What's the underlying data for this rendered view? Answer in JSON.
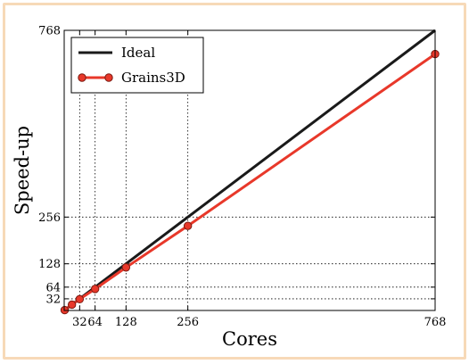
{
  "chart_data": {
    "type": "line",
    "xlabel": "Cores",
    "ylabel": "Speed-up",
    "xlim": [
      0,
      768
    ],
    "ylim": [
      0,
      768
    ],
    "xticks": [
      32,
      64,
      128,
      256,
      768
    ],
    "yticks": [
      32,
      64,
      128,
      256,
      768
    ],
    "grid": "dotted",
    "legend_position": "top-left",
    "series": [
      {
        "name": "Ideal",
        "color": "#1a1a1a",
        "marker": "none",
        "x": [
          0,
          768
        ],
        "y": [
          0,
          768
        ]
      },
      {
        "name": "Grains3D",
        "color": "#e8382a",
        "marker": "circle",
        "x": [
          1,
          16,
          32,
          64,
          128,
          256,
          768
        ],
        "y": [
          1,
          16,
          31,
          59,
          118,
          232,
          703
        ]
      }
    ]
  }
}
